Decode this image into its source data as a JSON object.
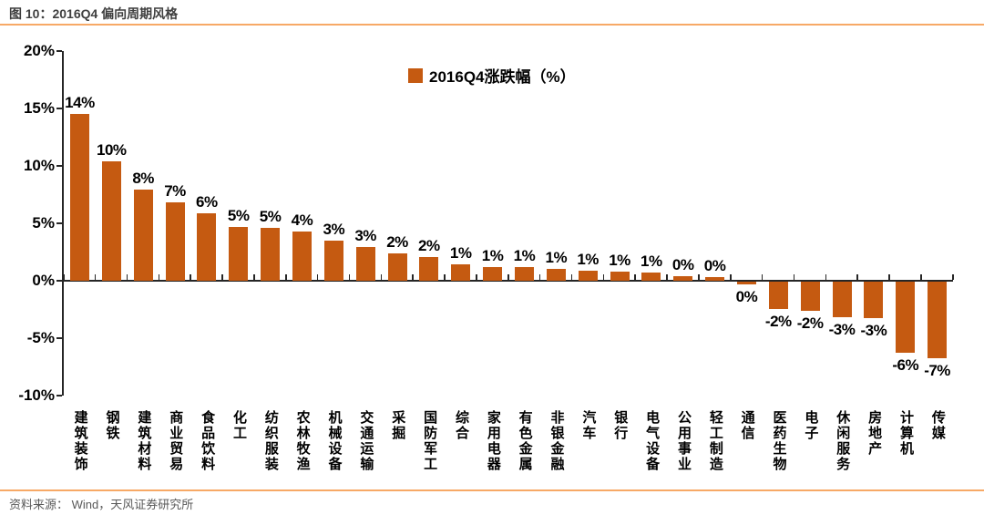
{
  "page": {
    "title": "图 10：2016Q4 偏向周期风格",
    "source": "资料来源： Wind，天风证券研究所"
  },
  "colors": {
    "bar": "#C55A11",
    "divider": "#F7A966",
    "axis": "#262626",
    "title_text": "#3F3F3F",
    "source_text": "#595959",
    "label_text": "#000000"
  },
  "chart_data": {
    "type": "bar",
    "series_name": "2016Q4涨跌幅（%）",
    "legend_position": "top-center",
    "grid": false,
    "ylim": [
      -10,
      20
    ],
    "ytick_labels": [
      "20%",
      "15%",
      "10%",
      "5%",
      "0%",
      "-5%",
      "-10%"
    ],
    "categories": [
      "建筑装饰",
      "钢铁",
      "建筑材料",
      "商业贸易",
      "食品饮料",
      "化工",
      "纺织服装",
      "农林牧渔",
      "机械设备",
      "交通运输",
      "采掘",
      "国防军工",
      "综合",
      "家用电器",
      "有色金属",
      "非银金融",
      "汽车",
      "银行",
      "电气设备",
      "公用事业",
      "轻工制造",
      "通信",
      "医药生物",
      "电子",
      "休闲服务",
      "房地产",
      "计算机",
      "传媒"
    ],
    "values": [
      14.5,
      10.4,
      7.9,
      6.8,
      5.9,
      4.7,
      4.6,
      4.3,
      3.5,
      2.9,
      2.4,
      2.1,
      1.4,
      1.2,
      1.2,
      1.0,
      0.9,
      0.8,
      0.7,
      0.4,
      0.3,
      -0.2,
      -2.4,
      -2.5,
      -3.1,
      -3.2,
      -6.2,
      -6.7
    ],
    "value_labels": [
      "14%",
      "10%",
      "8%",
      "7%",
      "6%",
      "5%",
      "5%",
      "4%",
      "3%",
      "3%",
      "2%",
      "2%",
      "1%",
      "1%",
      "1%",
      "1%",
      "1%",
      "1%",
      "1%",
      "0%",
      "0%",
      "0%",
      "-2%",
      "-2%",
      "-3%",
      "-3%",
      "-6%",
      "-7%"
    ]
  }
}
